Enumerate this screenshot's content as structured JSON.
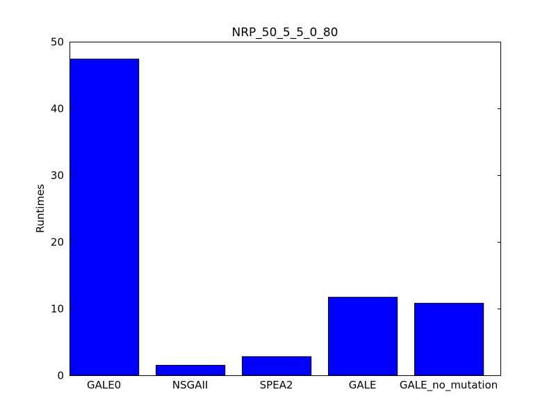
{
  "chart_data": {
    "type": "bar",
    "title": "NRP_50_5_5_0_80",
    "xlabel": "",
    "ylabel": "Runtimes",
    "categories": [
      "GALE0",
      "NSGAII",
      "SPEA2",
      "GALE",
      "GALE_no_mutation"
    ],
    "values": [
      47.4,
      1.5,
      2.8,
      11.7,
      10.8
    ],
    "ylim": [
      0,
      50
    ],
    "yticks": [
      0,
      10,
      20,
      30,
      40,
      50
    ],
    "grid": false,
    "legend": "none",
    "bar_color": "#0000ff",
    "edge_color": "#000000"
  }
}
